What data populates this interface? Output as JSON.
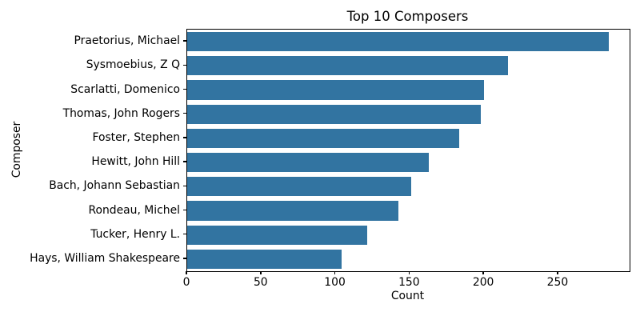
{
  "chart_data": {
    "type": "bar",
    "orientation": "horizontal",
    "title": "Top 10 Composers",
    "xlabel": "Count",
    "ylabel": "Composer",
    "categories": [
      "Praetorius, Michael",
      "Sysmoebius, Z Q",
      "Scarlatti, Domenico",
      "Thomas, John Rogers",
      "Foster, Stephen",
      "Hewitt, John Hill",
      "Bach, Johann Sebastian",
      "Rondeau, Michel",
      "Tucker, Henry L.",
      "Hays, William Shakespeare"
    ],
    "values": [
      284,
      216,
      200,
      198,
      183,
      163,
      151,
      142,
      121,
      104
    ],
    "xticks": [
      0,
      50,
      100,
      150,
      200,
      250
    ],
    "xlim": [
      0,
      298
    ],
    "bar_color": "#3274a1",
    "background_color": "#ffffff",
    "spine_color": "#000000",
    "grid": false,
    "legend": null
  }
}
